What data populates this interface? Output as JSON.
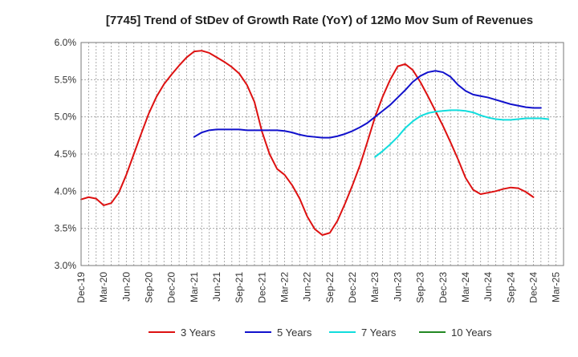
{
  "chart_data": {
    "type": "line",
    "title": "[7745]  Trend of StDev of Growth Rate (YoY) of 12Mo Mov Sum of Revenues",
    "xlabel": "",
    "ylabel": "",
    "ylim": [
      3.0,
      6.0
    ],
    "yticks": [
      3.0,
      3.5,
      4.0,
      4.5,
      5.0,
      5.5,
      6.0
    ],
    "ytick_labels": [
      "3.0%",
      "3.5%",
      "4.0%",
      "4.5%",
      "5.0%",
      "5.5%",
      "6.0%"
    ],
    "x_start": "Dec-19",
    "x_count": 64,
    "xtick_labels": [
      "Dec-19",
      "Mar-20",
      "Jun-20",
      "Sep-20",
      "Dec-20",
      "Mar-21",
      "Jun-21",
      "Sep-21",
      "Dec-21",
      "Mar-22",
      "Jun-22",
      "Sep-22",
      "Dec-22",
      "Mar-23",
      "Jun-23",
      "Sep-23",
      "Dec-23",
      "Mar-24",
      "Jun-24",
      "Sep-24",
      "Dec-24",
      "Mar-25"
    ],
    "grid": true,
    "legend_position": "bottom",
    "series": [
      {
        "name": "3 Years",
        "color": "#dd1111",
        "start_index": 0,
        "values": [
          3.89,
          3.92,
          3.9,
          3.81,
          3.84,
          3.98,
          4.22,
          4.5,
          4.78,
          5.05,
          5.27,
          5.44,
          5.57,
          5.69,
          5.8,
          5.88,
          5.89,
          5.86,
          5.8,
          5.74,
          5.67,
          5.58,
          5.43,
          5.2,
          4.8,
          4.5,
          4.3,
          4.22,
          4.08,
          3.9,
          3.66,
          3.49,
          3.41,
          3.44,
          3.6,
          3.83,
          4.08,
          4.35,
          4.67,
          5.0,
          5.27,
          5.5,
          5.68,
          5.71,
          5.63,
          5.47,
          5.28,
          5.08,
          4.88,
          4.66,
          4.43,
          4.18,
          4.02,
          3.96,
          3.98,
          4.0,
          4.03,
          4.05,
          4.04,
          3.99,
          3.92
        ]
      },
      {
        "name": "5 Years",
        "color": "#1111cc",
        "start_index": 15,
        "values": [
          4.73,
          4.79,
          4.82,
          4.83,
          4.83,
          4.83,
          4.83,
          4.82,
          4.82,
          4.82,
          4.82,
          4.82,
          4.81,
          4.79,
          4.76,
          4.74,
          4.73,
          4.72,
          4.72,
          4.74,
          4.77,
          4.81,
          4.86,
          4.92,
          5.0,
          5.08,
          5.16,
          5.26,
          5.36,
          5.47,
          5.55,
          5.6,
          5.62,
          5.6,
          5.54,
          5.43,
          5.35,
          5.3,
          5.28,
          5.26,
          5.23,
          5.2,
          5.17,
          5.15,
          5.13,
          5.12,
          5.12
        ]
      },
      {
        "name": "7 Years",
        "color": "#11dddd",
        "start_index": 39,
        "values": [
          4.46,
          4.54,
          4.63,
          4.73,
          4.85,
          4.94,
          5.01,
          5.05,
          5.07,
          5.08,
          5.09,
          5.09,
          5.08,
          5.06,
          5.02,
          4.99,
          4.97,
          4.96,
          4.96,
          4.97,
          4.98,
          4.98,
          4.98,
          4.97
        ]
      },
      {
        "name": "10 Years",
        "color": "#228822",
        "start_index": 0,
        "values": []
      }
    ]
  }
}
